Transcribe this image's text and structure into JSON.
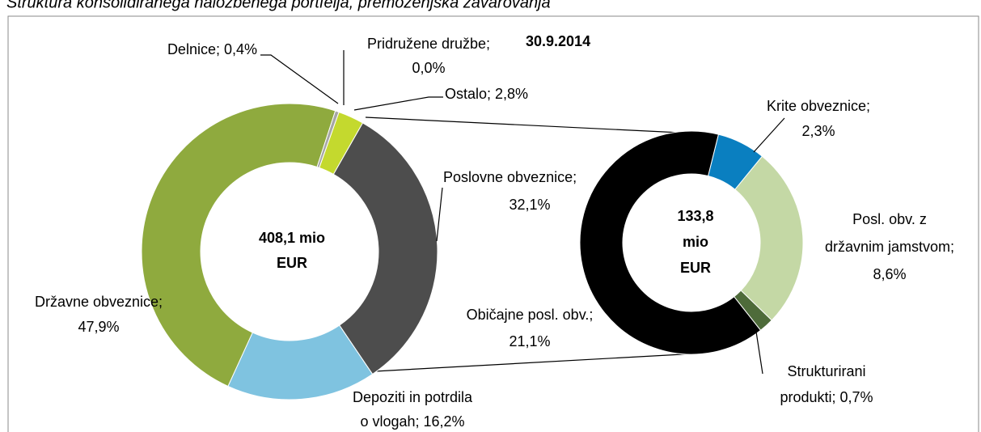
{
  "chart_data": [
    {
      "type": "donut",
      "title": "Struktura konsolidiranega naložbenega portfelja, premoženjska zavarovanja",
      "annotation": "30.9.2014",
      "center_label": [
        "408,1 mio",
        "EUR"
      ],
      "values": [
        0.0,
        2.8,
        32.1,
        16.2,
        47.9,
        0.4
      ],
      "value_labels": [
        [
          "Pridružene družbe;",
          "0,0%"
        ],
        [
          "Ostalo; 2,8%"
        ],
        [
          "Poslovne obveznice;",
          "32,1%"
        ],
        [
          "Depoziti in potrdila",
          "o vlogah; 16,2%"
        ],
        [
          "Državne obveznice;",
          "47,9%"
        ],
        [
          "Delnice; 0,4%"
        ]
      ],
      "colors": [
        "#7f7f7f",
        "#c4d92e",
        "#4d4d4d",
        "#7fc3e0",
        "#8faa3e",
        "#a6a6a6"
      ]
    },
    {
      "type": "donut",
      "center_label": [
        "133,8",
        "mio",
        "EUR"
      ],
      "values": [
        2.3,
        8.6,
        0.7,
        21.1
      ],
      "value_labels": [
        [
          "Krite obveznice;",
          "2,3%"
        ],
        [
          "Posl. obv. z",
          "državnim jamstvom;",
          "8,6%"
        ],
        [
          "Strukturirani",
          "produkti; 0,7%"
        ],
        [
          "Običajne posl. obv.;",
          "21,1%"
        ]
      ],
      "colors": [
        "#0a7fc0",
        "#c4d8a5",
        "#4e6b3a",
        "#000000"
      ]
    }
  ]
}
